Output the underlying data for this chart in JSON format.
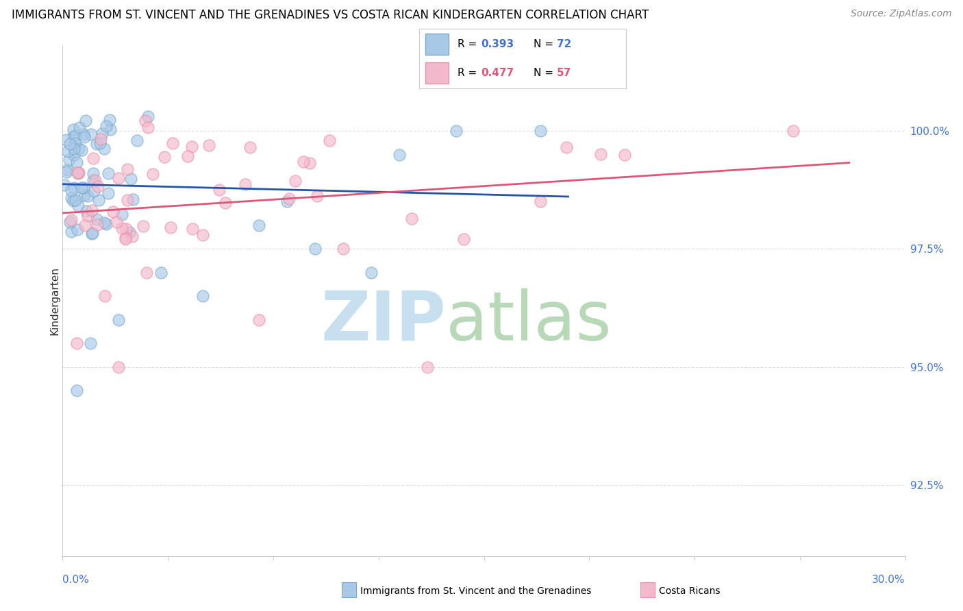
{
  "title": "IMMIGRANTS FROM ST. VINCENT AND THE GRENADINES VS COSTA RICAN KINDERGARTEN CORRELATION CHART",
  "source": "Source: ZipAtlas.com",
  "ylabel": "Kindergarten",
  "xlim": [
    0.0,
    30.0
  ],
  "ylim": [
    91.0,
    101.8
  ],
  "ytick_values": [
    92.5,
    95.0,
    97.5,
    100.0
  ],
  "ytick_labels": [
    "92.5%",
    "95.0%",
    "97.5%",
    "100.0%"
  ],
  "legend_r1": "0.393",
  "legend_n1": "72",
  "legend_r2": "0.477",
  "legend_n2": "57",
  "blue_color": "#a8c8e8",
  "pink_color": "#f4b8cc",
  "blue_edge_color": "#7aaac8",
  "pink_edge_color": "#e890a8",
  "blue_line_color": "#2255aa",
  "pink_line_color": "#dd5577",
  "blue_r_color": "#4472c4",
  "pink_r_color": "#dd5577",
  "background_color": "#ffffff",
  "grid_color": "#dddddd",
  "watermark_zip_color": "#c8dff0",
  "watermark_atlas_color": "#b8d8b8",
  "axis_label_color": "#4472c4",
  "source_color": "#888888",
  "spine_color": "#cccccc",
  "legend_border_color": "#cccccc"
}
